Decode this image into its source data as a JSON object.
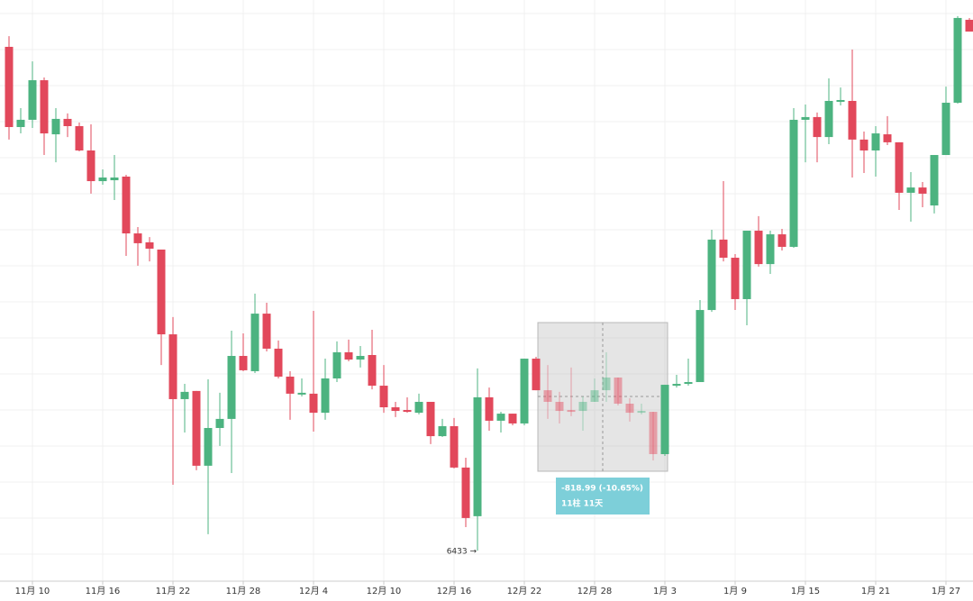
{
  "chart_data": {
    "type": "candlestick",
    "categories": [
      null,
      null,
      "11月 10",
      null,
      null,
      null,
      null,
      null,
      "11月 16",
      null,
      null,
      null,
      null,
      null,
      "11月 22",
      null,
      null,
      null,
      null,
      null,
      "11月 28",
      null,
      null,
      null,
      null,
      null,
      "12月 4",
      null,
      null,
      null,
      null,
      null,
      "12月 10",
      null,
      null,
      null,
      null,
      null,
      "12月 16",
      null,
      null,
      null,
      null,
      null,
      "12月 22",
      null,
      null,
      null,
      null,
      null,
      "12月 28",
      null,
      null,
      null,
      null,
      null,
      "1月 3",
      null,
      null,
      null,
      null,
      null,
      "1月 9",
      null,
      null,
      null,
      null,
      null,
      "1月 15",
      null,
      null,
      null,
      null,
      null,
      "1月 21",
      null,
      null,
      null,
      null,
      null,
      "1月 27",
      null,
      null
    ],
    "open": [
      9209,
      8767,
      8807,
      9025,
      8727,
      8812,
      8772,
      8638,
      8469,
      8474,
      8494,
      8181,
      8132,
      8092,
      7625,
      7268,
      7313,
      6901,
      7109,
      7159,
      7506,
      7422,
      7739,
      7546,
      7392,
      7293,
      7298,
      7193,
      7382,
      7526,
      7486,
      7511,
      7342,
      7223,
      7208,
      7193,
      7253,
      7064,
      7119,
      6891,
      6623,
      7278,
      7149,
      7188,
      7134,
      7491,
      7317,
      7253,
      7208,
      7203,
      7253,
      7317,
      7387,
      7243,
      7193,
      7198,
      6965,
      7342,
      7352,
      7362,
      7759,
      8147,
      8047,
      7819,
      8196,
      8012,
      8176,
      8107,
      8807,
      8822,
      8712,
      8906,
      8911,
      8698,
      8638,
      8727,
      8683,
      8405,
      8434,
      8335,
      8613,
      8901,
      9358
    ],
    "high": [
      9268,
      8871,
      9129,
      9040,
      8871,
      8842,
      8792,
      8782,
      8534,
      8613,
      8504,
      8216,
      8161,
      8092,
      7720,
      7352,
      7313,
      7377,
      7303,
      7645,
      7630,
      7849,
      7799,
      7591,
      7422,
      7382,
      7754,
      7491,
      7586,
      7596,
      7561,
      7650,
      7456,
      7253,
      7278,
      7298,
      7253,
      7159,
      7164,
      6945,
      7437,
      7332,
      7198,
      7188,
      7491,
      7501,
      7456,
      7308,
      7442,
      7283,
      7382,
      7526,
      7387,
      7273,
      7243,
      7198,
      7347,
      7402,
      7491,
      7814,
      8201,
      8469,
      8067,
      8196,
      8276,
      8196,
      8206,
      8871,
      8891,
      8847,
      9035,
      8985,
      9194,
      8742,
      8772,
      8827,
      8683,
      8519,
      8464,
      8613,
      8990,
      9378,
      9368
    ],
    "low": [
      8698,
      8732,
      8762,
      8613,
      8573,
      8712,
      8633,
      8400,
      8449,
      8365,
      8057,
      8003,
      8027,
      7456,
      6796,
      7084,
      6876,
      6524,
      7010,
      6861,
      7422,
      7412,
      7531,
      7382,
      7154,
      7283,
      7089,
      7154,
      7362,
      7476,
      7442,
      7322,
      7193,
      7169,
      7193,
      7184,
      7020,
      7059,
      6886,
      6563,
      6433,
      7094,
      7084,
      7124,
      7124,
      7317,
      7159,
      7134,
      7174,
      7094,
      7253,
      7253,
      7233,
      7144,
      7184,
      6930,
      6955,
      7332,
      7342,
      7362,
      7749,
      8027,
      7759,
      7675,
      7998,
      7958,
      8087,
      8102,
      8573,
      8573,
      8673,
      8886,
      8489,
      8514,
      8494,
      8668,
      8310,
      8246,
      8325,
      8291,
      8613,
      8896,
      9293
    ],
    "close": [
      8767,
      8807,
      9025,
      8732,
      8812,
      8772,
      8638,
      8469,
      8489,
      8489,
      8181,
      8127,
      8097,
      7625,
      7268,
      7308,
      6901,
      7109,
      7159,
      7506,
      7427,
      7739,
      7546,
      7392,
      7298,
      7303,
      7193,
      7382,
      7526,
      7486,
      7506,
      7342,
      7223,
      7203,
      7198,
      7253,
      7064,
      7119,
      6891,
      6613,
      7278,
      7149,
      7188,
      7134,
      7491,
      7317,
      7253,
      7203,
      7198,
      7253,
      7317,
      7387,
      7243,
      7193,
      7203,
      6965,
      7347,
      7352,
      7362,
      7759,
      8147,
      8047,
      7819,
      8196,
      8012,
      8176,
      8107,
      8807,
      8822,
      8712,
      8911,
      8916,
      8698,
      8638,
      8732,
      8683,
      8405,
      8434,
      8400,
      8613,
      8901,
      9368,
      9293
    ],
    "up_color": "#4cb380",
    "down_color": "#e2485b",
    "ylim": [
      6265,
      9467
    ],
    "grid": true,
    "annotations": [
      {
        "text": "6433 →"
      }
    ],
    "measure": {
      "change": "-818.99 (-10.65%)",
      "span": "11柱 11天"
    }
  }
}
